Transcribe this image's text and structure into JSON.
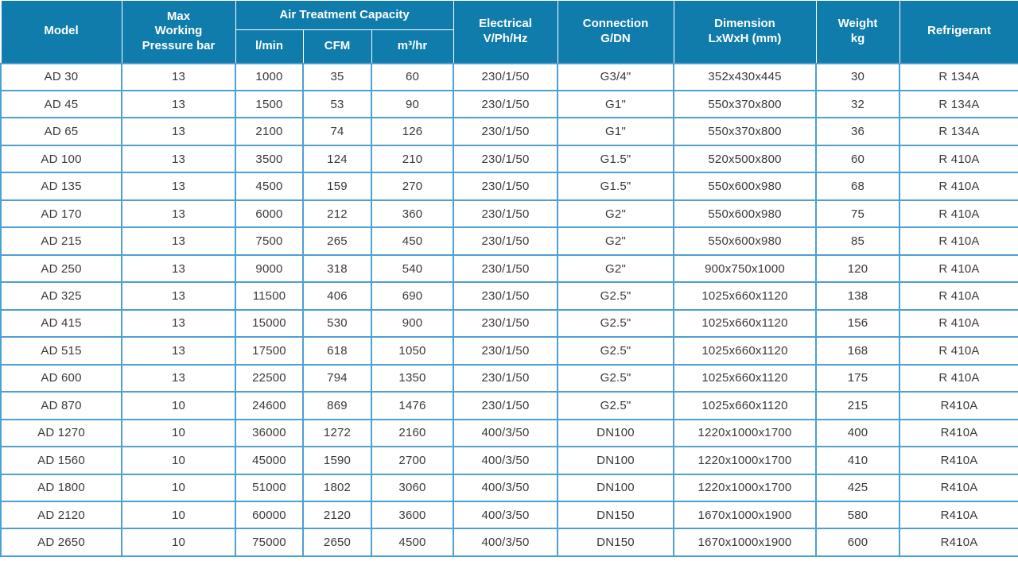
{
  "table": {
    "headers": {
      "model": "Model",
      "pressure_lines": [
        "Max",
        "Working",
        "Pressure bar"
      ],
      "capacity_group": "Air Treatment Capacity",
      "capacity_units": [
        "l/min",
        "CFM",
        "m³/hr"
      ],
      "electrical_lines": [
        "Electrical",
        "V/Ph/Hz"
      ],
      "connection_lines": [
        "Connection",
        "G/DN"
      ],
      "dimension_lines": [
        "Dimension",
        "LxWxH (mm)"
      ],
      "weight_lines": [
        "Weight",
        "kg"
      ],
      "refrigerant": "Refrigerant"
    },
    "columns": [
      "Model",
      "Max Working Pressure bar",
      "l/min",
      "CFM",
      "m³/hr",
      "Electrical V/Ph/Hz",
      "Connection G/DN",
      "Dimension LxWxH (mm)",
      "Weight kg",
      "Refrigerant"
    ],
    "rows": [
      [
        "AD 30",
        "13",
        "1000",
        "35",
        "60",
        "230/1/50",
        "G3/4\"",
        "352x430x445",
        "30",
        "R 134A"
      ],
      [
        "AD 45",
        "13",
        "1500",
        "53",
        "90",
        "230/1/50",
        "G1\"",
        "550x370x800",
        "32",
        "R 134A"
      ],
      [
        "AD 65",
        "13",
        "2100",
        "74",
        "126",
        "230/1/50",
        "G1\"",
        "550x370x800",
        "36",
        "R 134A"
      ],
      [
        "AD 100",
        "13",
        "3500",
        "124",
        "210",
        "230/1/50",
        "G1.5\"",
        "520x500x800",
        "60",
        "R 410A"
      ],
      [
        "AD 135",
        "13",
        "4500",
        "159",
        "270",
        "230/1/50",
        "G1.5\"",
        "550x600x980",
        "68",
        "R 410A"
      ],
      [
        "AD 170",
        "13",
        "6000",
        "212",
        "360",
        "230/1/50",
        "G2\"",
        "550x600x980",
        "75",
        "R 410A"
      ],
      [
        "AD 215",
        "13",
        "7500",
        "265",
        "450",
        "230/1/50",
        "G2\"",
        "550x600x980",
        "85",
        "R 410A"
      ],
      [
        "AD 250",
        "13",
        "9000",
        "318",
        "540",
        "230/1/50",
        "G2\"",
        "900x750x1000",
        "120",
        "R 410A"
      ],
      [
        "AD 325",
        "13",
        "11500",
        "406",
        "690",
        "230/1/50",
        "G2.5\"",
        "1025x660x1120",
        "138",
        "R 410A"
      ],
      [
        "AD 415",
        "13",
        "15000",
        "530",
        "900",
        "230/1/50",
        "G2.5\"",
        "1025x660x1120",
        "156",
        "R 410A"
      ],
      [
        "AD 515",
        "13",
        "17500",
        "618",
        "1050",
        "230/1/50",
        "G2.5\"",
        "1025x660x1120",
        "168",
        "R 410A"
      ],
      [
        "AD 600",
        "13",
        "22500",
        "794",
        "1350",
        "230/1/50",
        "G2.5\"",
        "1025x660x1120",
        "175",
        "R 410A"
      ],
      [
        "AD 870",
        "10",
        "24600",
        "869",
        "1476",
        "230/1/50",
        "G2.5\"",
        "1025x660x1120",
        "215",
        "R410A"
      ],
      [
        "AD 1270",
        "10",
        "36000",
        "1272",
        "2160",
        "400/3/50",
        "DN100",
        "1220x1000x1700",
        "400",
        "R410A"
      ],
      [
        "AD 1560",
        "10",
        "45000",
        "1590",
        "2700",
        "400/3/50",
        "DN100",
        "1220x1000x1700",
        "410",
        "R410A"
      ],
      [
        "AD 1800",
        "10",
        "51000",
        "1802",
        "3060",
        "400/3/50",
        "DN100",
        "1220x1000x1700",
        "425",
        "R410A"
      ],
      [
        "AD 2120",
        "10",
        "60000",
        "2120",
        "3600",
        "400/3/50",
        "DN150",
        "1670x1000x1900",
        "580",
        "R410A"
      ],
      [
        "AD 2650",
        "10",
        "75000",
        "2650",
        "4500",
        "400/3/50",
        "DN150",
        "1670x1000x1900",
        "600",
        "R410A"
      ]
    ]
  },
  "colors": {
    "header_bg": "#0f7cab",
    "header_text": "#ffffff",
    "grid_line": "#4d9fd4",
    "cell_text": "#3a3a3a",
    "header_divider": "#ffffff"
  }
}
